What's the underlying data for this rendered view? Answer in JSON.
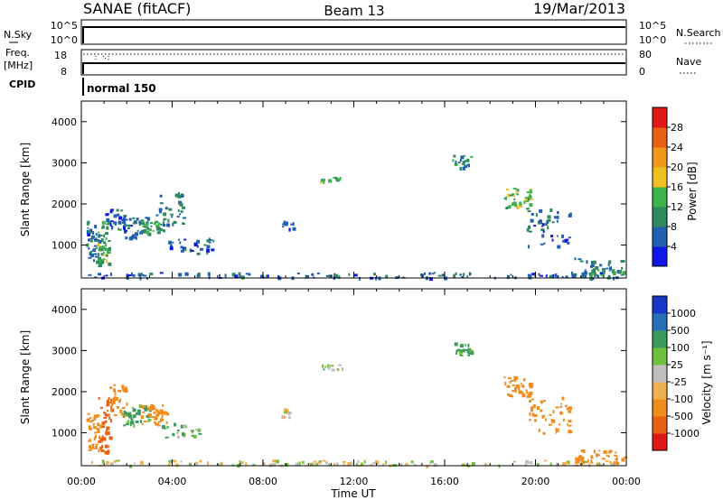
{
  "header": {
    "station": "SANAE (fitACF)",
    "beam": "Beam 13",
    "date": "19/Mar/2013"
  },
  "top_panels": {
    "nsky_label": "N.Sky",
    "nsky_ticks": [
      "10^5",
      "10^0"
    ],
    "nsearch_label": "N.Search",
    "nsearch_ticks": [
      "10^5",
      "10^0"
    ],
    "freq_label": "Freq.",
    "freq_unit": "[MHz]",
    "freq_ticks": [
      "18",
      "8"
    ],
    "nave_label": "Nave",
    "nave_ticks": [
      "80",
      "0"
    ],
    "cpid_label": "CPID",
    "cpid_value": "normal 150"
  },
  "colors": {
    "power_scale": [
      "#1018e8",
      "#2060b0",
      "#2e8a5c",
      "#3cb44b",
      "#f0c020",
      "#f09818",
      "#e86010",
      "#e01818"
    ],
    "velocity_scale": [
      "#e01818",
      "#e86010",
      "#f08c1c",
      "#f0b050",
      "#bebebe",
      "#70c040",
      "#3c9a5c",
      "#2a70b8",
      "#1838c8"
    ]
  },
  "chart_data": [
    {
      "type": "heatmap",
      "panel": "power",
      "ylabel": "Slant Range [km]",
      "yticks": [
        "1000",
        "2000",
        "3000",
        "4000"
      ],
      "ylim": [
        200,
        4500
      ],
      "xlim": [
        0,
        24
      ],
      "colorbar_label": "Power [dB]",
      "colorbar_ticks": [
        "4",
        "8",
        "12",
        "16",
        "20",
        "24",
        "28"
      ],
      "clim": [
        0,
        32
      ],
      "blobs": [
        {
          "t": [
            0.2,
            0.8
          ],
          "r": [
            600,
            1600
          ],
          "v": 7,
          "n": 45
        },
        {
          "t": [
            0.7,
            1.2
          ],
          "r": [
            500,
            1600
          ],
          "v": 13,
          "n": 40
        },
        {
          "t": [
            1.0,
            1.9
          ],
          "r": [
            1400,
            1900
          ],
          "v": 6,
          "n": 30
        },
        {
          "t": [
            1.6,
            3.0
          ],
          "r": [
            1200,
            1700
          ],
          "v": 7,
          "n": 45
        },
        {
          "t": [
            2.5,
            3.6
          ],
          "r": [
            1300,
            1600
          ],
          "v": 12,
          "n": 30
        },
        {
          "t": [
            3.2,
            4.5
          ],
          "r": [
            1500,
            2300
          ],
          "v": 8,
          "n": 35
        },
        {
          "t": [
            3.8,
            5.8
          ],
          "r": [
            800,
            1200
          ],
          "v": 6,
          "n": 30
        },
        {
          "t": [
            8.8,
            9.3
          ],
          "r": [
            1400,
            1600
          ],
          "v": 6,
          "n": 10
        },
        {
          "t": [
            10.5,
            11.5
          ],
          "r": [
            2550,
            2700
          ],
          "v": 13,
          "n": 12
        },
        {
          "t": [
            16.3,
            17.2
          ],
          "r": [
            2900,
            3200
          ],
          "v": 9,
          "n": 20
        },
        {
          "t": [
            18.6,
            19.8
          ],
          "r": [
            1900,
            2400
          ],
          "v": 14,
          "n": 40
        },
        {
          "t": [
            19.6,
            21.5
          ],
          "r": [
            1000,
            1900
          ],
          "v": 6,
          "n": 45
        },
        {
          "t": [
            21.5,
            23.9
          ],
          "r": [
            250,
            700
          ],
          "v": 8,
          "n": 35
        },
        {
          "t": [
            22.3,
            23.9
          ],
          "r": [
            280,
            420
          ],
          "v": 12,
          "n": 25
        },
        {
          "t": [
            0.2,
            23.9
          ],
          "r": [
            220,
            350
          ],
          "v": 6,
          "n": 120
        }
      ]
    },
    {
      "type": "heatmap",
      "panel": "velocity",
      "xlabel": "Time UT",
      "xticks": [
        "00:00",
        "04:00",
        "08:00",
        "12:00",
        "16:00",
        "20:00",
        "00:00"
      ],
      "ylabel": "Slant Range [km]",
      "yticks": [
        "1000",
        "2000",
        "3000",
        "4000"
      ],
      "ylim": [
        200,
        4500
      ],
      "xlim": [
        0,
        24
      ],
      "colorbar_label": "Velocity [m s⁻¹]",
      "colorbar_ticks": [
        "1000",
        "500",
        "100",
        "25",
        "-25",
        "-100",
        "-500",
        "-1000"
      ],
      "blobs": [
        {
          "t": [
            0.2,
            0.9
          ],
          "r": [
            600,
            1500
          ],
          "v": -300,
          "n": 40
        },
        {
          "t": [
            0.7,
            1.3
          ],
          "r": [
            500,
            1900
          ],
          "v": -700,
          "n": 40
        },
        {
          "t": [
            1.2,
            2.0
          ],
          "r": [
            1400,
            2200
          ],
          "v": -300,
          "n": 30
        },
        {
          "t": [
            1.8,
            3.0
          ],
          "r": [
            1200,
            1700
          ],
          "v": 150,
          "n": 35
        },
        {
          "t": [
            2.6,
            3.8
          ],
          "r": [
            1200,
            1700
          ],
          "v": -300,
          "n": 40
        },
        {
          "t": [
            3.5,
            5.2
          ],
          "r": [
            900,
            1300
          ],
          "v": 60,
          "n": 25
        },
        {
          "t": [
            8.8,
            9.3
          ],
          "r": [
            1400,
            1600
          ],
          "v": 0,
          "n": 10
        },
        {
          "t": [
            10.5,
            11.5
          ],
          "r": [
            2550,
            2700
          ],
          "v": 60,
          "n": 12
        },
        {
          "t": [
            16.3,
            17.2
          ],
          "r": [
            2900,
            3200
          ],
          "v": 150,
          "n": 20
        },
        {
          "t": [
            18.6,
            19.8
          ],
          "r": [
            1900,
            2400
          ],
          "v": -300,
          "n": 40
        },
        {
          "t": [
            19.6,
            21.5
          ],
          "r": [
            1000,
            1900
          ],
          "v": -300,
          "n": 45
        },
        {
          "t": [
            21.6,
            23.9
          ],
          "r": [
            250,
            600
          ],
          "v": -300,
          "n": 40
        },
        {
          "t": [
            0.2,
            23.9
          ],
          "r": [
            220,
            350
          ],
          "v": 0,
          "n": 110
        }
      ]
    }
  ]
}
